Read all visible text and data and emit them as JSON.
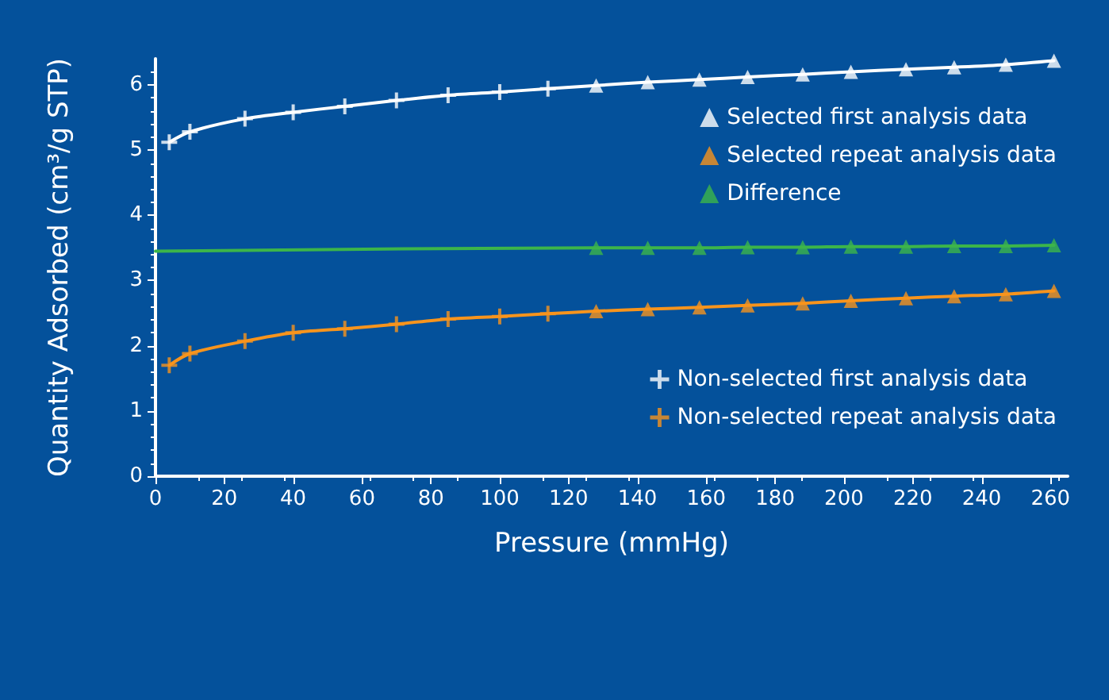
{
  "chart_data": {
    "type": "line",
    "xlabel": "Pressure (mmHg)",
    "ylabel": "Quantity Adsorbed (cm³/g STP)",
    "xlim": [
      0,
      265
    ],
    "xticks": [
      0,
      20,
      40,
      60,
      80,
      100,
      120,
      140,
      160,
      180,
      200,
      220,
      240,
      260
    ],
    "ylim": [
      0,
      6.4
    ],
    "yticks": [
      0,
      1,
      2,
      3,
      4,
      5,
      6
    ],
    "grid": false,
    "legend": "right",
    "series": [
      {
        "type": "line",
        "marker": "none",
        "color": "#ffffff",
        "x": [
          4,
          10,
          26,
          40,
          55,
          70,
          85,
          100,
          114,
          128,
          143,
          158,
          172,
          188,
          202,
          218,
          232,
          247,
          261
        ],
        "values": [
          5.12,
          5.28,
          5.48,
          5.58,
          5.67,
          5.76,
          5.84,
          5.89,
          5.94,
          5.99,
          6.04,
          6.08,
          6.12,
          6.16,
          6.2,
          6.24,
          6.27,
          6.31,
          6.37
        ]
      },
      {
        "type": "line",
        "marker": "none",
        "color": "#f7941d",
        "x": [
          4,
          10,
          26,
          40,
          55,
          70,
          85,
          100,
          114,
          128,
          143,
          158,
          172,
          188,
          202,
          218,
          232,
          247,
          261
        ],
        "values": [
          1.7,
          1.88,
          2.07,
          2.2,
          2.26,
          2.33,
          2.41,
          2.45,
          2.49,
          2.53,
          2.56,
          2.59,
          2.62,
          2.65,
          2.69,
          2.73,
          2.76,
          2.79,
          2.84
        ]
      },
      {
        "type": "line",
        "marker": "none",
        "color": "#3cb54a",
        "x": [
          0,
          128,
          143,
          158,
          172,
          188,
          202,
          218,
          232,
          247,
          261
        ],
        "values": [
          3.45,
          3.5,
          3.5,
          3.5,
          3.51,
          3.51,
          3.52,
          3.52,
          3.53,
          3.53,
          3.54
        ]
      },
      {
        "type": "scatter",
        "name": "Selected first analysis data",
        "marker": "triangle",
        "color": "#ffffff",
        "x": [
          128,
          143,
          158,
          172,
          188,
          202,
          218,
          232,
          247,
          261
        ],
        "values": [
          5.99,
          6.04,
          6.08,
          6.12,
          6.16,
          6.2,
          6.24,
          6.27,
          6.31,
          6.37
        ]
      },
      {
        "type": "scatter",
        "name": "Selected repeat analysis data",
        "marker": "triangle",
        "color": "#f7941d",
        "x": [
          128,
          143,
          158,
          172,
          188,
          202,
          218,
          232,
          247,
          261
        ],
        "values": [
          2.53,
          2.56,
          2.59,
          2.62,
          2.65,
          2.69,
          2.73,
          2.76,
          2.79,
          2.84
        ]
      },
      {
        "type": "scatter",
        "name": "Difference",
        "marker": "triangle",
        "color": "#3cb54a",
        "x": [
          128,
          143,
          158,
          172,
          188,
          202,
          218,
          232,
          247,
          261
        ],
        "values": [
          3.5,
          3.5,
          3.5,
          3.51,
          3.51,
          3.52,
          3.52,
          3.53,
          3.53,
          3.54
        ]
      },
      {
        "type": "scatter",
        "name": "Non-selected first analysis data",
        "marker": "cross",
        "color": "#ffffff",
        "x": [
          4,
          10,
          26,
          40,
          55,
          70,
          85,
          100,
          114
        ],
        "values": [
          5.12,
          5.28,
          5.48,
          5.58,
          5.67,
          5.76,
          5.84,
          5.89,
          5.94
        ]
      },
      {
        "type": "scatter",
        "name": "Non-selected repeat analysis data",
        "marker": "cross",
        "color": "#f7941d",
        "x": [
          4,
          10,
          26,
          40,
          55,
          70,
          85,
          100,
          114
        ],
        "values": [
          1.7,
          1.88,
          2.07,
          2.2,
          2.26,
          2.33,
          2.41,
          2.45,
          2.49
        ]
      }
    ]
  }
}
